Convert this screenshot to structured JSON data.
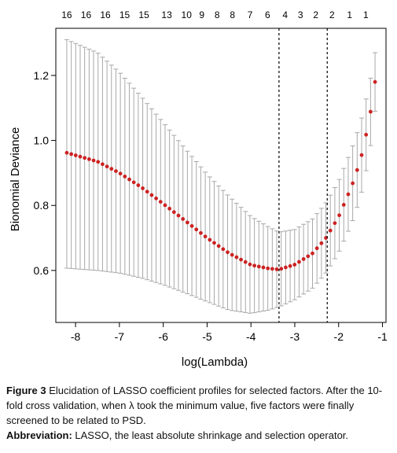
{
  "chart_data": {
    "type": "scatter",
    "xlabel": "log(Lambda)",
    "ylabel": "Bionomial Deviance",
    "xlim": [
      -8.45,
      -0.92
    ],
    "ylim": [
      0.44,
      1.345
    ],
    "x_ticks": [
      "-8",
      "-7",
      "-6",
      "-5",
      "-4",
      "-3",
      "-2",
      "-1"
    ],
    "y_ticks": [
      "0.6",
      "0.8",
      "1.0",
      "1.2"
    ],
    "top_axis_labels": [
      {
        "x": -8.2,
        "label": "16"
      },
      {
        "x": -7.76,
        "label": "16"
      },
      {
        "x": -7.32,
        "label": "16"
      },
      {
        "x": -6.88,
        "label": "15"
      },
      {
        "x": -6.44,
        "label": "15"
      },
      {
        "x": -5.92,
        "label": "13"
      },
      {
        "x": -5.47,
        "label": "10"
      },
      {
        "x": -5.12,
        "label": "9"
      },
      {
        "x": -4.77,
        "label": "8"
      },
      {
        "x": -4.42,
        "label": "8"
      },
      {
        "x": -4.02,
        "label": "7"
      },
      {
        "x": -3.62,
        "label": "6"
      },
      {
        "x": -3.22,
        "label": "4"
      },
      {
        "x": -2.87,
        "label": "3"
      },
      {
        "x": -2.52,
        "label": "2"
      },
      {
        "x": -2.15,
        "label": "2"
      },
      {
        "x": -1.75,
        "label": "1"
      },
      {
        "x": -1.38,
        "label": "1"
      }
    ],
    "vlines": [
      -3.36,
      -2.26
    ],
    "x_range": [
      -8.2,
      -1.17
    ],
    "n_points": 70,
    "series": [
      {
        "mean_curve": [
          [
            -8.2,
            0.962
          ],
          [
            -7.5,
            0.935
          ],
          [
            -7.0,
            0.9
          ],
          [
            -6.5,
            0.856
          ],
          [
            -6.0,
            0.805
          ],
          [
            -5.5,
            0.753
          ],
          [
            -5.0,
            0.7
          ],
          [
            -4.5,
            0.653
          ],
          [
            -4.0,
            0.617
          ],
          [
            -3.6,
            0.606
          ],
          [
            -3.36,
            0.603
          ],
          [
            -3.0,
            0.618
          ],
          [
            -2.6,
            0.652
          ],
          [
            -2.3,
            0.698
          ],
          [
            -2.0,
            0.765
          ],
          [
            -1.7,
            0.86
          ],
          [
            -1.5,
            0.94
          ],
          [
            -1.3,
            1.063
          ],
          [
            -1.17,
            1.18
          ]
        ],
        "lower_curve": [
          [
            -8.2,
            0.607
          ],
          [
            -7.5,
            0.6
          ],
          [
            -7.0,
            0.592
          ],
          [
            -6.5,
            0.577
          ],
          [
            -6.0,
            0.556
          ],
          [
            -5.5,
            0.531
          ],
          [
            -5.0,
            0.504
          ],
          [
            -4.5,
            0.478
          ],
          [
            -4.0,
            0.468
          ],
          [
            -3.6,
            0.478
          ],
          [
            -3.36,
            0.488
          ],
          [
            -3.0,
            0.51
          ],
          [
            -2.6,
            0.545
          ],
          [
            -2.3,
            0.59
          ],
          [
            -2.0,
            0.655
          ],
          [
            -1.7,
            0.745
          ],
          [
            -1.5,
            0.825
          ],
          [
            -1.3,
            0.955
          ],
          [
            -1.17,
            1.09
          ]
        ],
        "upper_curve": [
          [
            -8.2,
            1.31
          ],
          [
            -7.5,
            1.27
          ],
          [
            -7.0,
            1.21
          ],
          [
            -6.5,
            1.135
          ],
          [
            -6.0,
            1.055
          ],
          [
            -5.5,
            0.975
          ],
          [
            -5.0,
            0.896
          ],
          [
            -4.5,
            0.828
          ],
          [
            -4.0,
            0.766
          ],
          [
            -3.6,
            0.734
          ],
          [
            -3.36,
            0.718
          ],
          [
            -3.0,
            0.726
          ],
          [
            -2.6,
            0.758
          ],
          [
            -2.3,
            0.806
          ],
          [
            -2.0,
            0.875
          ],
          [
            -1.7,
            0.975
          ],
          [
            -1.5,
            1.055
          ],
          [
            -1.3,
            1.17
          ],
          [
            -1.17,
            1.27
          ]
        ]
      }
    ],
    "colors": {
      "points": "#cc2222",
      "errorbars": "#a8a8a8",
      "axes": "#000000"
    }
  },
  "caption": {
    "figure_label": "Figure 3",
    "figure_text": " Elucidation of LASSO coefficient profiles for selected factors. After the 10-fold cross validation, when λ took the minimum value, five factors were finally screened to be related to PSD.",
    "abbrev_label": "Abbreviation:",
    "abbrev_text": " LASSO, the least absolute shrinkage and selection operator."
  }
}
